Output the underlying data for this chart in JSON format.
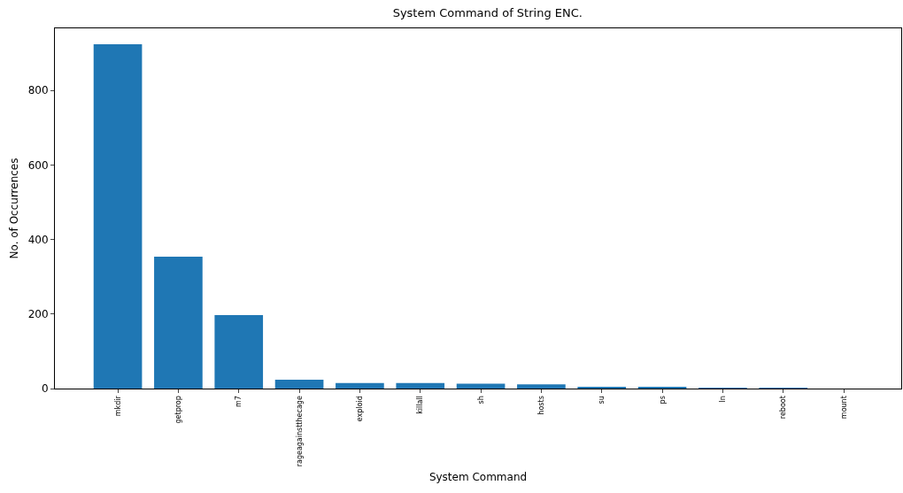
{
  "chart_data": {
    "type": "bar",
    "title": "System Command of String ENC.",
    "xlabel": "System Command",
    "ylabel": "No. of Occurrences",
    "categories": [
      "mkdir",
      "getprop",
      "m7",
      "rageagainstthecage",
      "exploid",
      "killall",
      "sh",
      "hosts",
      "su",
      "ps",
      "ln",
      "reboot",
      "mount"
    ],
    "values": [
      924,
      354,
      197,
      24,
      15,
      15,
      13,
      11,
      4,
      4,
      2,
      2,
      0
    ],
    "color": "#1f77b4",
    "ylim": [
      0,
      967
    ],
    "yticks": [
      0,
      200,
      400,
      600,
      800
    ]
  }
}
